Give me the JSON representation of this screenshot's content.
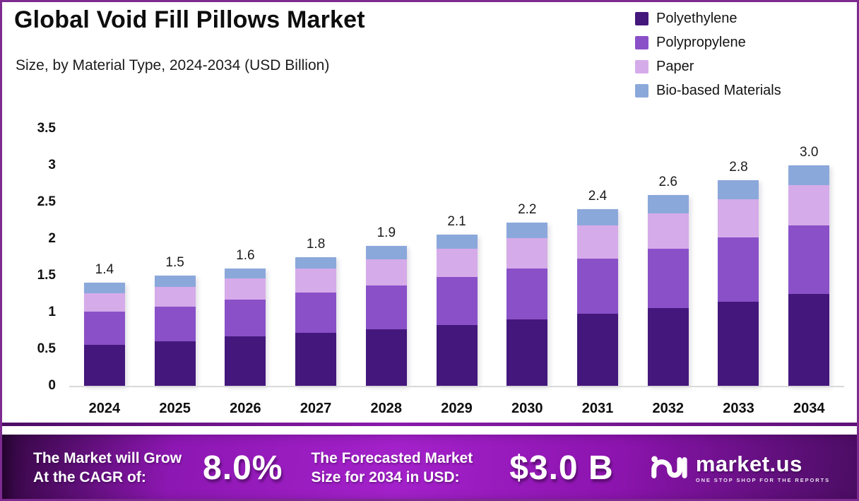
{
  "title": "Global Void Fill Pillows Market",
  "subtitle": "Size, by Material Type, 2024-2034 (USD Billion)",
  "legend": [
    {
      "label": "Polyethylene",
      "color": "#44177c"
    },
    {
      "label": "Polypropylene",
      "color": "#8a50c8"
    },
    {
      "label": "Paper",
      "color": "#d6abe9"
    },
    {
      "label": "Bio-based Materials",
      "color": "#8ba8db"
    }
  ],
  "chart_data": {
    "type": "bar",
    "stacked": true,
    "title": "Global Void Fill Pillows Market Size, by Material Type, 2024-2034 (USD Billion)",
    "categories": [
      "2024",
      "2025",
      "2026",
      "2027",
      "2028",
      "2029",
      "2030",
      "2031",
      "2032",
      "2033",
      "2034"
    ],
    "series": [
      {
        "name": "Polyethylene",
        "color": "#44177c",
        "values": [
          0.56,
          0.61,
          0.67,
          0.72,
          0.77,
          0.83,
          0.9,
          0.98,
          1.06,
          1.14,
          1.25
        ]
      },
      {
        "name": "Polypropylene",
        "color": "#8a50c8",
        "values": [
          0.45,
          0.47,
          0.5,
          0.55,
          0.6,
          0.65,
          0.7,
          0.75,
          0.81,
          0.88,
          0.93
        ]
      },
      {
        "name": "Paper",
        "color": "#d6abe9",
        "values": [
          0.25,
          0.27,
          0.29,
          0.33,
          0.35,
          0.39,
          0.41,
          0.45,
          0.48,
          0.52,
          0.55
        ]
      },
      {
        "name": "Bio-based Materials",
        "color": "#8ba8db",
        "values": [
          0.14,
          0.15,
          0.14,
          0.15,
          0.18,
          0.19,
          0.21,
          0.22,
          0.25,
          0.26,
          0.27
        ]
      }
    ],
    "total_labels": [
      "1.4",
      "1.5",
      "1.6",
      "1.8",
      "1.9",
      "2.1",
      "2.2",
      "2.4",
      "2.6",
      "2.8",
      "3.0"
    ],
    "xlabel": "",
    "ylabel": "USD Billion",
    "ylim": [
      0,
      3.5
    ],
    "yticks": [
      "0",
      "0.5",
      "1",
      "1.5",
      "2",
      "2.5",
      "3",
      "3.5"
    ],
    "grid": false,
    "legend_position": "top-right"
  },
  "banner": {
    "cagr_caption_line1": "The Market will Grow",
    "cagr_caption_line2": "At the CAGR of:",
    "cagr_value": "8.0%",
    "forecast_caption_line1": "The Forecasted Market",
    "forecast_caption_line2": "Size for 2034 in USD:",
    "forecast_value": "$3.0 B",
    "brand_name": "market.us",
    "brand_tagline": "ONE STOP SHOP FOR THE REPORTS"
  },
  "colors": {
    "page_border": "#7d2b90",
    "banner_bright": "#a321ca",
    "banner_dark": "#330741",
    "baseline": "#d9d9d9"
  }
}
